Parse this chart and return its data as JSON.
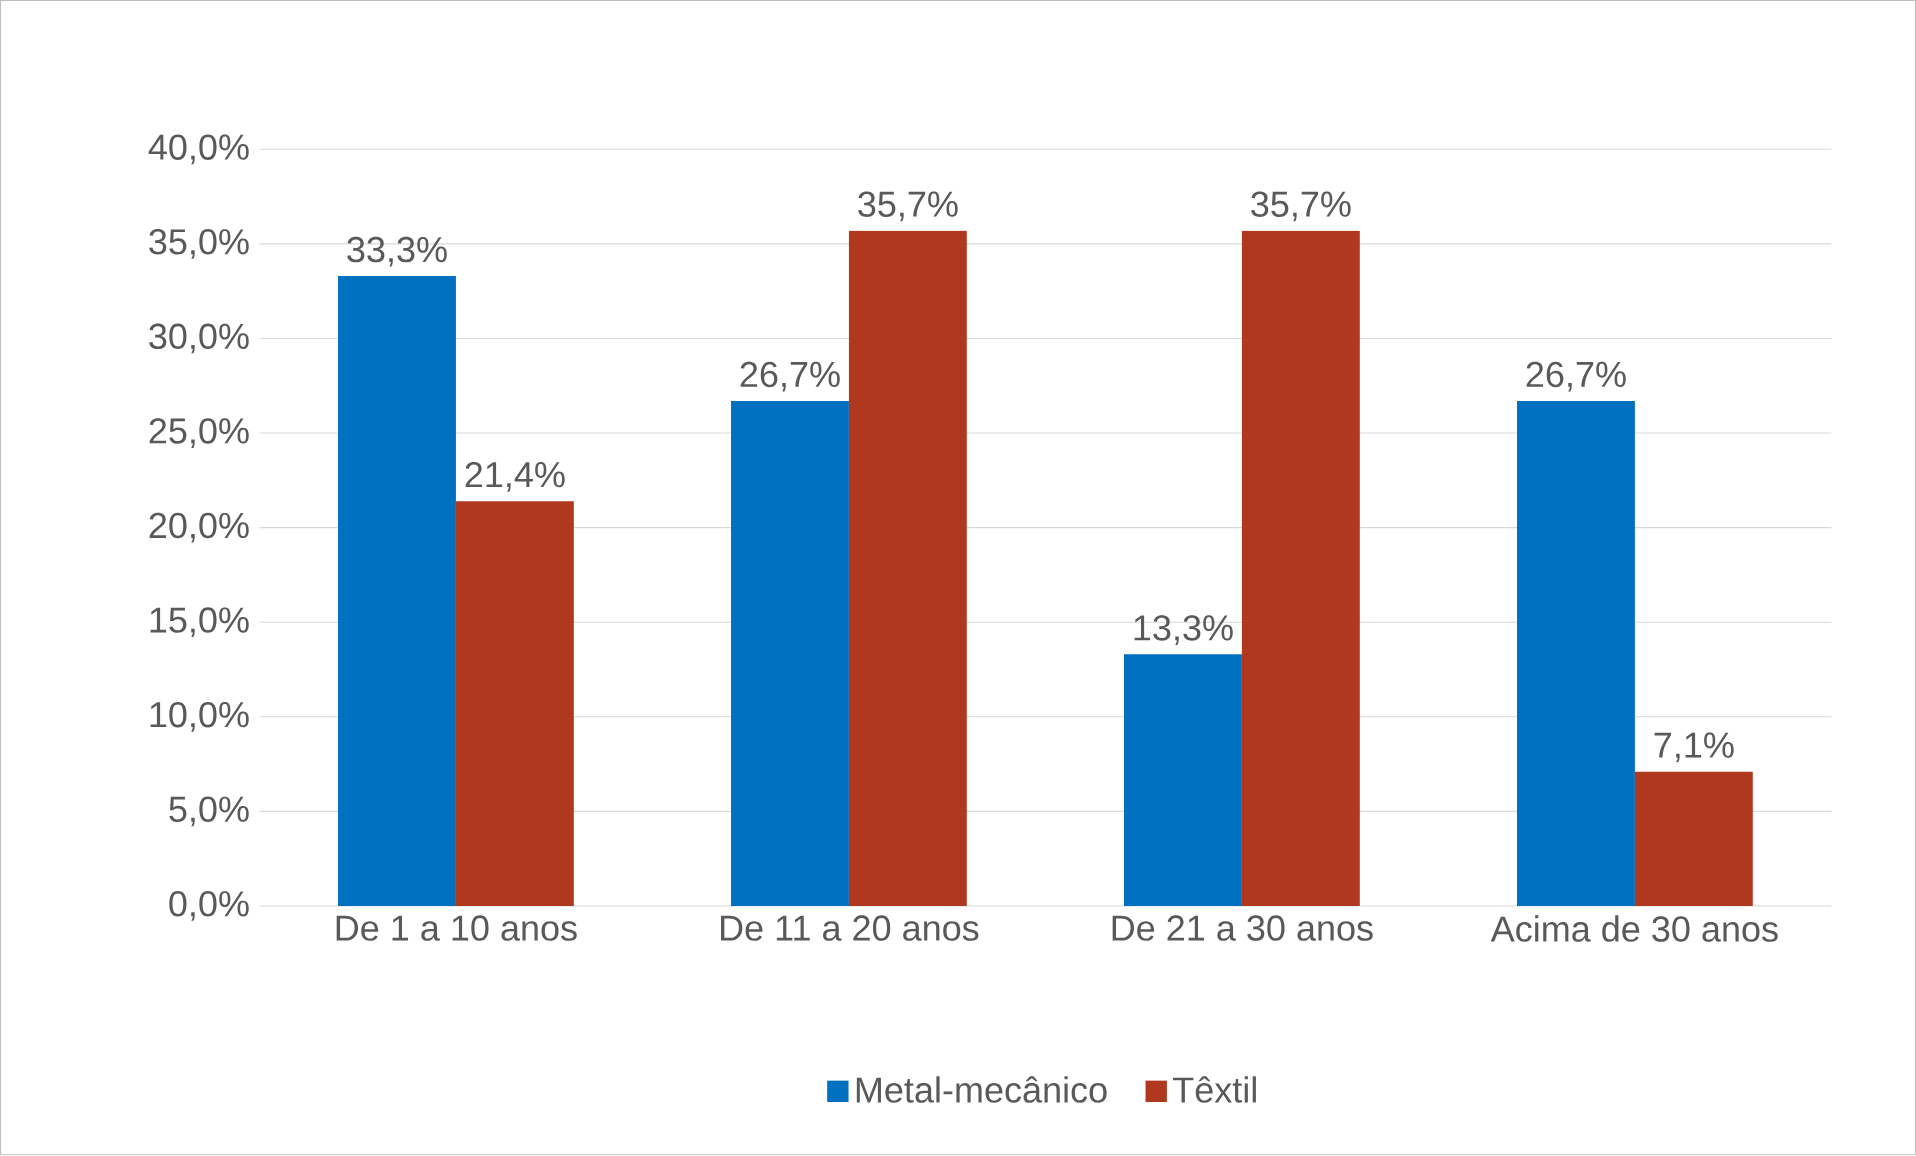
{
  "chart_data": {
    "type": "bar",
    "categories": [
      "De 1 a 10 anos",
      "De 11 a 20 anos",
      "De 21 a 30 anos",
      "Acima de 30 anos"
    ],
    "series": [
      {
        "name": "Metal-mecânico",
        "color": "#0070c0",
        "values": [
          33.3,
          26.7,
          13.3,
          26.7
        ],
        "value_labels": [
          "33,3%",
          "26,7%",
          "13,3%",
          "26,7%"
        ]
      },
      {
        "name": "Têxtil",
        "color": "#b0381e",
        "values": [
          21.4,
          35.7,
          35.7,
          7.1
        ],
        "value_labels": [
          "21,4%",
          "35,7%",
          "35,7%",
          "7,1%"
        ]
      }
    ],
    "ylim": [
      0,
      40
    ],
    "yticks": [
      {
        "value": 0,
        "label": "0,0%"
      },
      {
        "value": 5,
        "label": "5,0%"
      },
      {
        "value": 10,
        "label": "10,0%"
      },
      {
        "value": 15,
        "label": "15,0%"
      },
      {
        "value": 20,
        "label": "20,0%"
      },
      {
        "value": 25,
        "label": "25,0%"
      },
      {
        "value": 30,
        "label": "30,0%"
      },
      {
        "value": 35,
        "label": "35,0%"
      },
      {
        "value": 40,
        "label": "40,0%"
      }
    ],
    "grid": "y",
    "legend": "bottom"
  }
}
